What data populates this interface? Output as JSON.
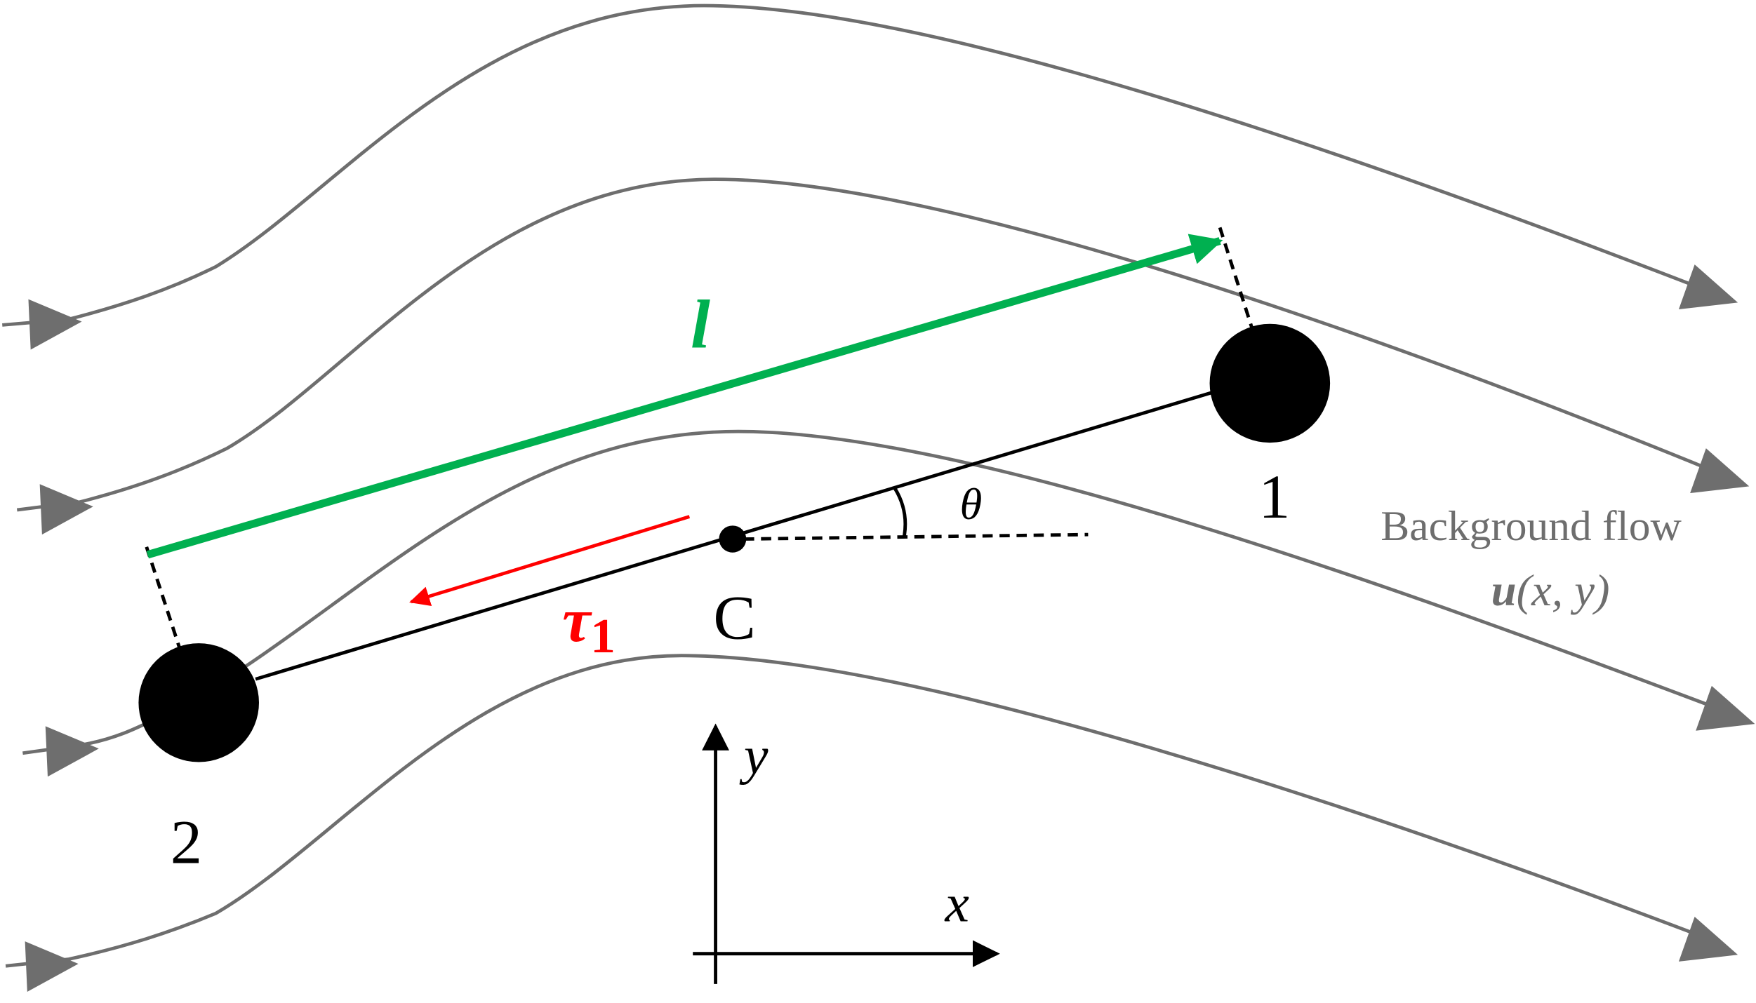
{
  "labels": {
    "length_vector": "l",
    "tension_symbol": "τ",
    "tension_subscript": "1",
    "center": "C",
    "angle": "θ",
    "particle_1": "1",
    "particle_2": "2",
    "background_flow": "Background flow",
    "velocity_symbol": "u",
    "velocity_args": "(x, y)",
    "axis_y": "y",
    "axis_x": "x"
  }
}
